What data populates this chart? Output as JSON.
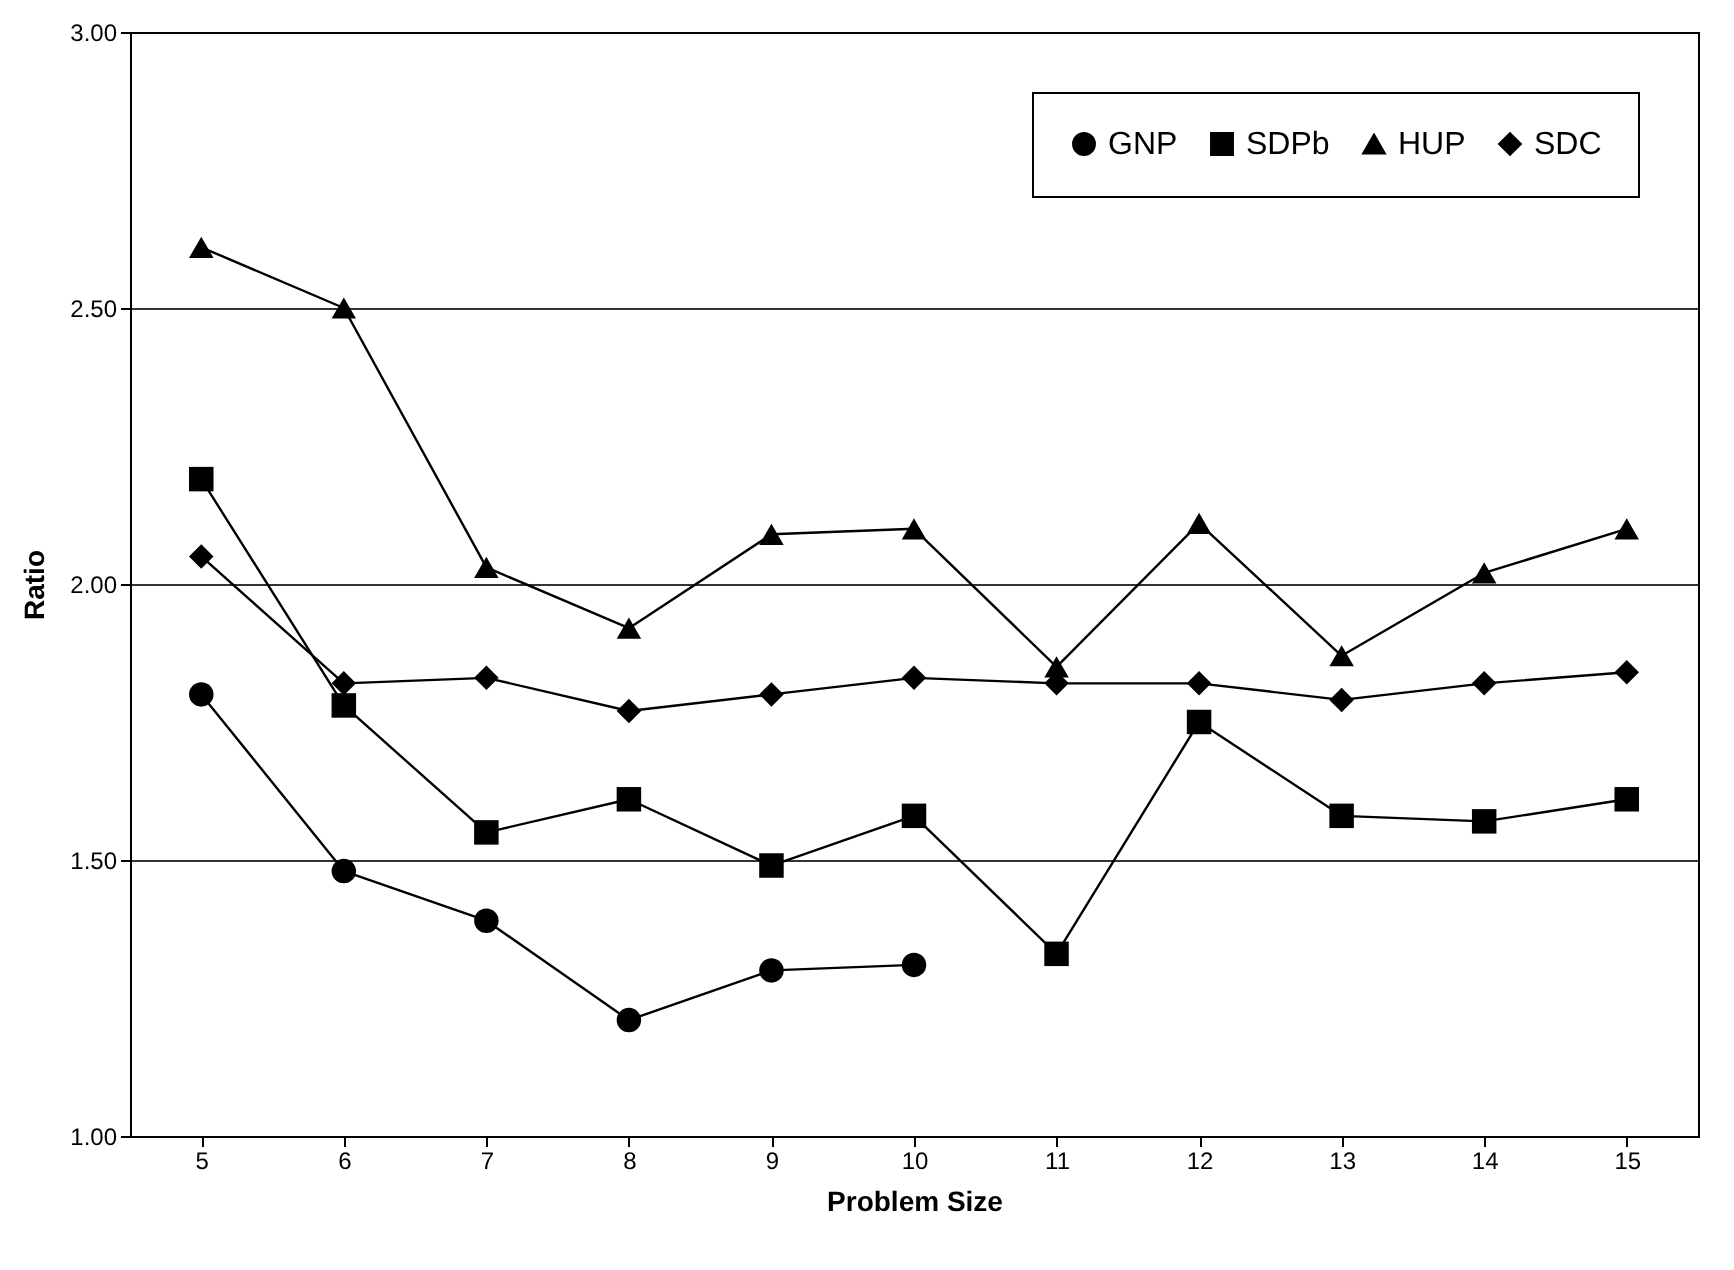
{
  "chart_data": {
    "type": "line",
    "xlabel": "Problem Size",
    "ylabel": "Ratio",
    "categories": [
      "5",
      "6",
      "7",
      "8",
      "9",
      "10",
      "11",
      "12",
      "13",
      "14",
      "15"
    ],
    "series": [
      {
        "name": "GNP",
        "color": "#000000",
        "marker": "circle",
        "values": [
          1.8,
          1.48,
          1.39,
          1.21,
          1.3,
          1.31,
          null,
          null,
          null,
          null,
          null
        ]
      },
      {
        "name": "SDPb",
        "color": "#000000",
        "marker": "square",
        "values": [
          2.19,
          1.78,
          1.55,
          1.61,
          1.49,
          1.58,
          1.33,
          1.75,
          1.58,
          1.57,
          1.61
        ]
      },
      {
        "name": "HUP",
        "color": "#000000",
        "marker": "triangle",
        "values": [
          2.61,
          2.5,
          2.03,
          1.92,
          2.09,
          2.1,
          1.85,
          2.11,
          1.87,
          2.02,
          2.1
        ]
      },
      {
        "name": "SDC",
        "color": "#000000",
        "marker": "diamond",
        "values": [
          2.05,
          1.82,
          1.83,
          1.77,
          1.8,
          1.83,
          1.82,
          1.82,
          1.79,
          1.82,
          1.84
        ]
      }
    ],
    "ylim": [
      1,
      3
    ],
    "yticks": [
      {
        "value": 1,
        "label": "1.00"
      },
      {
        "value": 1.5,
        "label": "1.50"
      },
      {
        "value": 2,
        "label": "2.00"
      },
      {
        "value": 2.5,
        "label": "2.50"
      },
      {
        "value": 3,
        "label": "3.00"
      }
    ],
    "grid": "y",
    "legend": "top right",
    "line_style": "solid"
  }
}
